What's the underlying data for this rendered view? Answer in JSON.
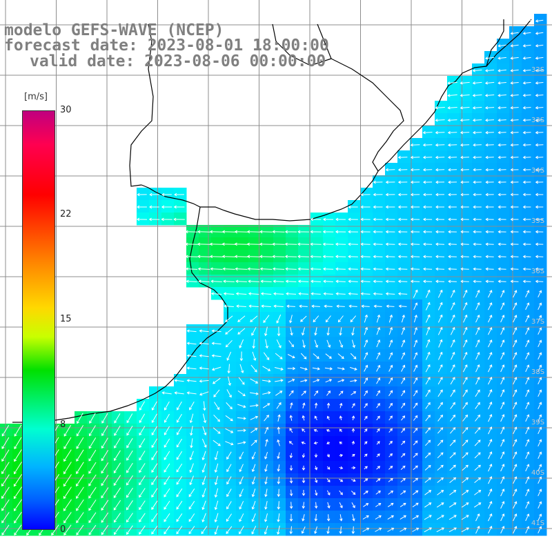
{
  "title": {
    "line1": "modelo GEFS-WAVE (NCEP)",
    "line2": "forecast date: 2023-08-01 18:00:00",
    "line3": "valid date: 2023-08-06 00:00:00"
  },
  "colorbar": {
    "unit": "[m/s]",
    "ticks": [
      "30",
      "22",
      "15",
      "8",
      "0"
    ],
    "min": 0,
    "max": 30
  },
  "lat_labels": [
    "32S",
    "33S",
    "34S",
    "35S",
    "36S",
    "37S",
    "38S",
    "39S",
    "40S",
    "41S"
  ],
  "colors": {
    "land": "#ffffff",
    "coast": "#000000",
    "grid": "#8c8c8c",
    "arrows": "#ffffff",
    "title": "#808080"
  }
}
